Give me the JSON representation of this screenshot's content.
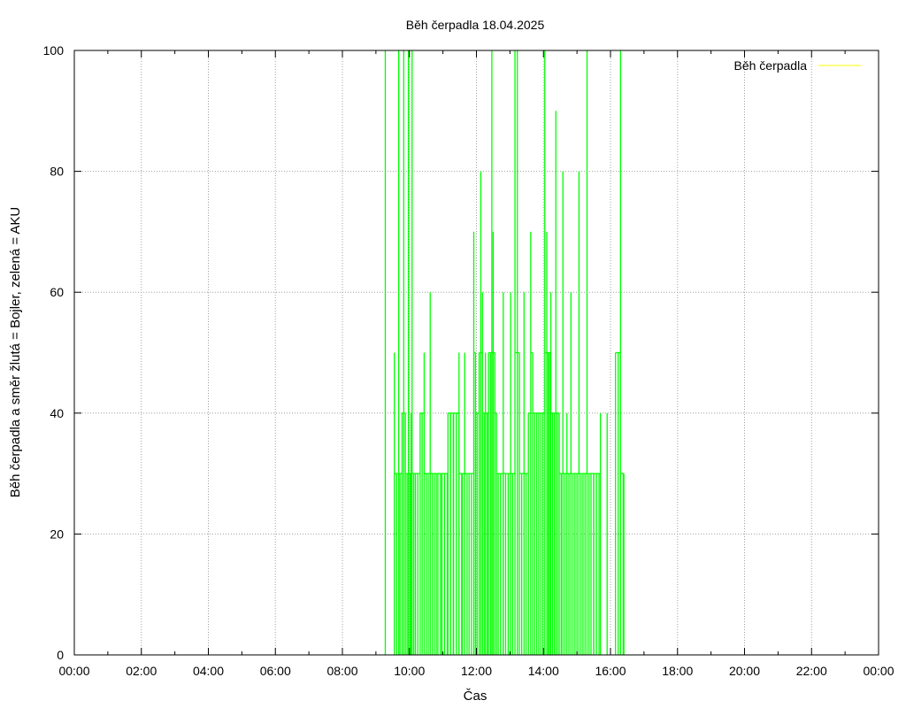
{
  "chart_data": {
    "type": "line",
    "title": "Běh čerpadla 18.04.2025",
    "xlabel": "Čas",
    "ylabel": "Běh čerpadla a směr žlutá = Bojler, zelená = AKU",
    "x_unit": "hours",
    "xlim": [
      0,
      24
    ],
    "ylim": [
      0,
      100
    ],
    "x_ticks": [
      0,
      2,
      4,
      6,
      8,
      10,
      12,
      14,
      16,
      18,
      20,
      22,
      24
    ],
    "x_tick_labels": [
      "00:00",
      "02:00",
      "04:00",
      "06:00",
      "08:00",
      "10:00",
      "12:00",
      "14:00",
      "16:00",
      "18:00",
      "20:00",
      "22:00",
      "00:00"
    ],
    "y_ticks": [
      0,
      20,
      40,
      60,
      80,
      100
    ],
    "y_tick_labels": [
      "0",
      "20",
      "40",
      "60",
      "80",
      "100"
    ],
    "grid": true,
    "legend": {
      "position": "top-right",
      "entries": [
        {
          "name": "Běh čerpadla",
          "color": "#ffff00"
        }
      ]
    },
    "series": [
      {
        "name": "Běh čerpadla",
        "color": "#ffff00",
        "spikes": []
      },
      {
        "color": "#00ff00",
        "spikes": [
          [
            9.28,
            100
          ],
          [
            9.55,
            50
          ],
          [
            9.62,
            30
          ],
          [
            9.68,
            100
          ],
          [
            9.72,
            30
          ],
          [
            9.78,
            40
          ],
          [
            9.83,
            100
          ],
          [
            9.88,
            40
          ],
          [
            9.93,
            30
          ],
          [
            9.97,
            100
          ],
          [
            10.02,
            30
          ],
          [
            10.05,
            40
          ],
          [
            10.08,
            100
          ],
          [
            10.13,
            30
          ],
          [
            10.18,
            30
          ],
          [
            10.25,
            30
          ],
          [
            10.32,
            40
          ],
          [
            10.38,
            40
          ],
          [
            10.44,
            50
          ],
          [
            10.5,
            30
          ],
          [
            10.56,
            30
          ],
          [
            10.62,
            60
          ],
          [
            10.68,
            30
          ],
          [
            10.74,
            30
          ],
          [
            10.8,
            30
          ],
          [
            10.85,
            30
          ],
          [
            10.97,
            30
          ],
          [
            11.15,
            40
          ],
          [
            11.32,
            40
          ],
          [
            11.48,
            50
          ],
          [
            11.58,
            30
          ],
          [
            11.65,
            50
          ],
          [
            11.72,
            30
          ],
          [
            11.78,
            30
          ],
          [
            11.85,
            30
          ],
          [
            11.92,
            70
          ],
          [
            11.97,
            50
          ],
          [
            12.02,
            40
          ],
          [
            12.08,
            50
          ],
          [
            12.13,
            80
          ],
          [
            12.18,
            60
          ],
          [
            12.23,
            40
          ],
          [
            12.27,
            50
          ],
          [
            12.32,
            40
          ],
          [
            12.36,
            50
          ],
          [
            12.42,
            50
          ],
          [
            12.46,
            100
          ],
          [
            12.5,
            70
          ],
          [
            12.55,
            50
          ],
          [
            12.6,
            40
          ],
          [
            12.65,
            30
          ],
          [
            12.72,
            30
          ],
          [
            12.8,
            60
          ],
          [
            12.87,
            30
          ],
          [
            12.95,
            30
          ],
          [
            13.02,
            60
          ],
          [
            13.08,
            30
          ],
          [
            13.15,
            100
          ],
          [
            13.22,
            100
          ],
          [
            13.28,
            50
          ],
          [
            13.35,
            30
          ],
          [
            13.42,
            60
          ],
          [
            13.48,
            30
          ],
          [
            13.55,
            40
          ],
          [
            13.62,
            70
          ],
          [
            13.68,
            50
          ],
          [
            13.74,
            40
          ],
          [
            13.8,
            40
          ],
          [
            13.86,
            40
          ],
          [
            13.92,
            40
          ],
          [
            13.98,
            40
          ],
          [
            14.04,
            100
          ],
          [
            14.1,
            70
          ],
          [
            14.14,
            50
          ],
          [
            14.18,
            50
          ],
          [
            14.22,
            60
          ],
          [
            14.27,
            40
          ],
          [
            14.32,
            40
          ],
          [
            14.37,
            90
          ],
          [
            14.42,
            40
          ],
          [
            14.47,
            40
          ],
          [
            14.53,
            30
          ],
          [
            14.58,
            80
          ],
          [
            14.64,
            30
          ],
          [
            14.7,
            40
          ],
          [
            14.76,
            30
          ],
          [
            14.82,
            60
          ],
          [
            14.88,
            30
          ],
          [
            14.94,
            30
          ],
          [
            15.0,
            30
          ],
          [
            15.06,
            80
          ],
          [
            15.12,
            30
          ],
          [
            15.18,
            30
          ],
          [
            15.24,
            30
          ],
          [
            15.3,
            100
          ],
          [
            15.36,
            30
          ],
          [
            15.42,
            30
          ],
          [
            15.5,
            30
          ],
          [
            15.7,
            40
          ],
          [
            15.9,
            40
          ],
          [
            16.15,
            50
          ],
          [
            16.3,
            100
          ],
          [
            16.4,
            30
          ]
        ]
      }
    ]
  }
}
